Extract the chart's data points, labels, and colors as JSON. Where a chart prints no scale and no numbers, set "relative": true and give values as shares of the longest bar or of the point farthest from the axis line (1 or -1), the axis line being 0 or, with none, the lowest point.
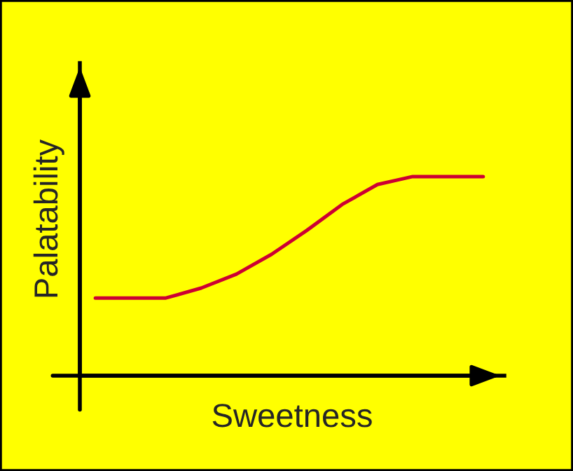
{
  "chart_data": {
    "type": "line",
    "relative": true,
    "xlabel": "Sweetness",
    "ylabel": "Palatability",
    "categories": [
      null,
      null,
      null,
      null,
      null,
      null,
      null,
      null,
      null,
      null,
      null,
      null
    ],
    "series": [
      {
        "color": "#cc0033",
        "values": [
          0.39,
          0.39,
          0.39,
          0.44,
          0.51,
          0.61,
          0.73,
          0.86,
          0.96,
          1,
          1,
          1
        ]
      }
    ],
    "legend": false,
    "marker": "none",
    "line_style": "solid"
  }
}
